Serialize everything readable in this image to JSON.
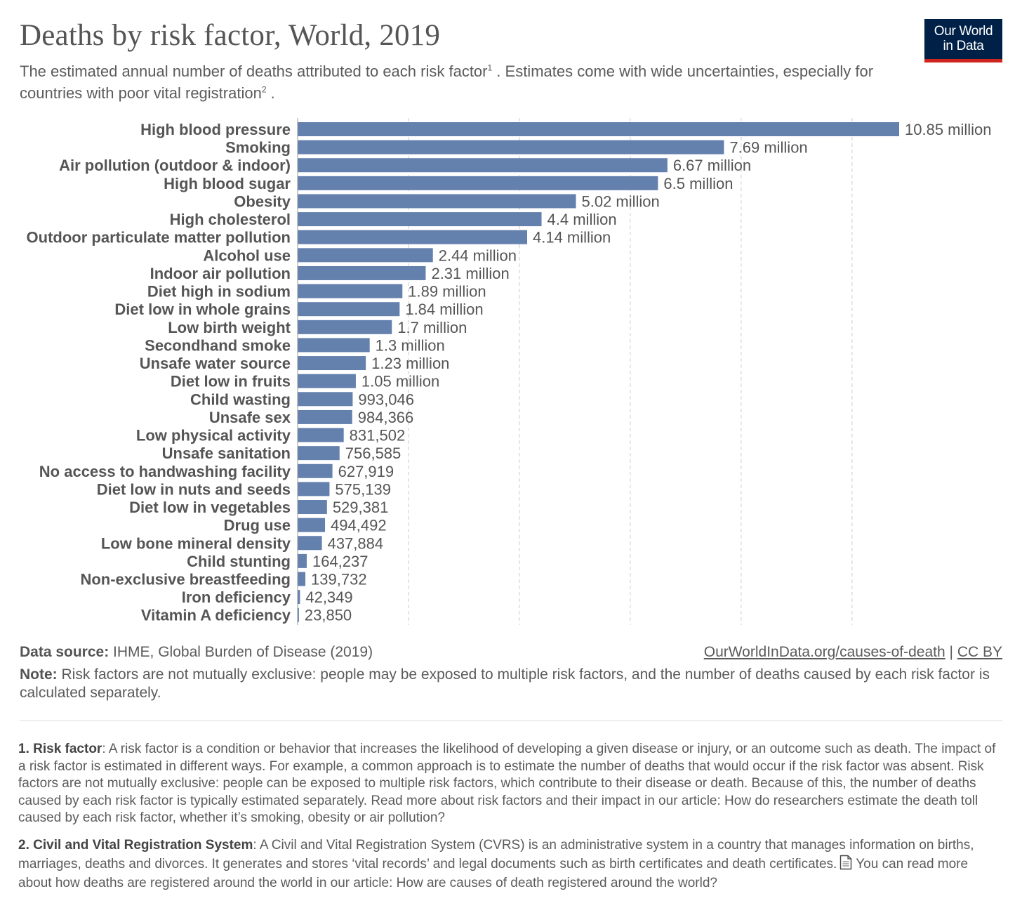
{
  "header": {
    "title": "Deaths by risk factor, World, 2019",
    "subtitle_part1": "The estimated annual number of deaths attributed to each risk factor",
    "subtitle_sup1": "1",
    "subtitle_part2": " . Estimates come with wide uncertainties, especially for countries with poor vital registration",
    "subtitle_sup2": "2",
    "subtitle_part3": " .",
    "logo_line1": "Our World",
    "logo_line2": "in Data"
  },
  "colors": {
    "bar": "#6480ad",
    "logo_bg": "#002147",
    "logo_accent": "#ce261e",
    "grid": "#cccccc"
  },
  "chart_data": {
    "type": "bar",
    "orientation": "horizontal",
    "title": "Deaths by risk factor, World, 2019",
    "xlabel": "",
    "ylabel": "",
    "xlim": [
      0,
      11000000
    ],
    "grid": "vertical dashed",
    "categories": [
      "High blood pressure",
      "Smoking",
      "Air pollution (outdoor & indoor)",
      "High blood sugar",
      "Obesity",
      "High cholesterol",
      "Outdoor particulate matter pollution",
      "Alcohol use",
      "Indoor air pollution",
      "Diet high in sodium",
      "Diet low in whole grains",
      "Low birth weight",
      "Secondhand smoke",
      "Unsafe water source",
      "Diet low in fruits",
      "Child wasting",
      "Unsafe sex",
      "Low physical activity",
      "Unsafe sanitation",
      "No access to handwashing facility",
      "Diet low in nuts and seeds",
      "Diet low in vegetables",
      "Drug use",
      "Low bone mineral density",
      "Child stunting",
      "Non-exclusive breastfeeding",
      "Iron deficiency",
      "Vitamin A deficiency"
    ],
    "values": [
      10850000,
      7690000,
      6670000,
      6500000,
      5020000,
      4400000,
      4140000,
      2440000,
      2310000,
      1890000,
      1840000,
      1700000,
      1300000,
      1230000,
      1050000,
      993046,
      984366,
      831502,
      756585,
      627919,
      575139,
      529381,
      494492,
      437884,
      164237,
      139732,
      42349,
      23850
    ],
    "value_labels": [
      "10.85 million",
      "7.69 million",
      "6.67 million",
      "6.5 million",
      "5.02 million",
      "4.4 million",
      "4.14 million",
      "2.44 million",
      "2.31 million",
      "1.89 million",
      "1.84 million",
      "1.7 million",
      "1.3 million",
      "1.23 million",
      "1.05 million",
      "993,046",
      "984,366",
      "831,502",
      "756,585",
      "627,919",
      "575,139",
      "529,381",
      "494,492",
      "437,884",
      "164,237",
      "139,732",
      "42,349",
      "23,850"
    ],
    "gridlines": [
      2000000,
      4000000,
      6000000,
      8000000,
      10000000
    ]
  },
  "footer": {
    "source_label": "Data source:",
    "source_text": " IHME, Global Burden of Disease (2019)",
    "link_text": "OurWorldInData.org/causes-of-death",
    "link_sep": " | ",
    "license_text": "CC BY",
    "note_label": "Note:",
    "note_text": " Risk factors are not mutually exclusive: people may be exposed to multiple risk factors, and the number of deaths caused by each risk factor is calculated separately."
  },
  "footnotes": {
    "fn1_title": "1. Risk factor",
    "fn1_text": ": A risk factor is a condition or behavior that increases the likelihood of developing a given disease or injury, or an outcome such as death. The impact of a risk factor is estimated in different ways. For example, a common approach is to estimate the number of deaths that would occur if the risk factor was absent. Risk factors are not mutually exclusive: people can be exposed to multiple risk factors, which contribute to their disease or death. Because of this, the number of deaths caused by each risk factor is typically estimated separately. Read more about risk factors and their impact in our article: How do researchers estimate the death toll caused by each risk factor, whether it’s smoking, obesity or air pollution?",
    "fn2_title": "2. Civil and Vital Registration System",
    "fn2_text_a": ": A Civil and Vital Registration System (CVRS) is an administrative system in a country that manages information on births, marriages, deaths and divorces. It generates and stores ‘vital records’ and legal documents such as birth certificates and death certificates.",
    "fn2_text_b": " You can read more about how deaths are registered around the world in our article: How are causes of death registered around the world?",
    "doc_icon": "document-icon"
  }
}
